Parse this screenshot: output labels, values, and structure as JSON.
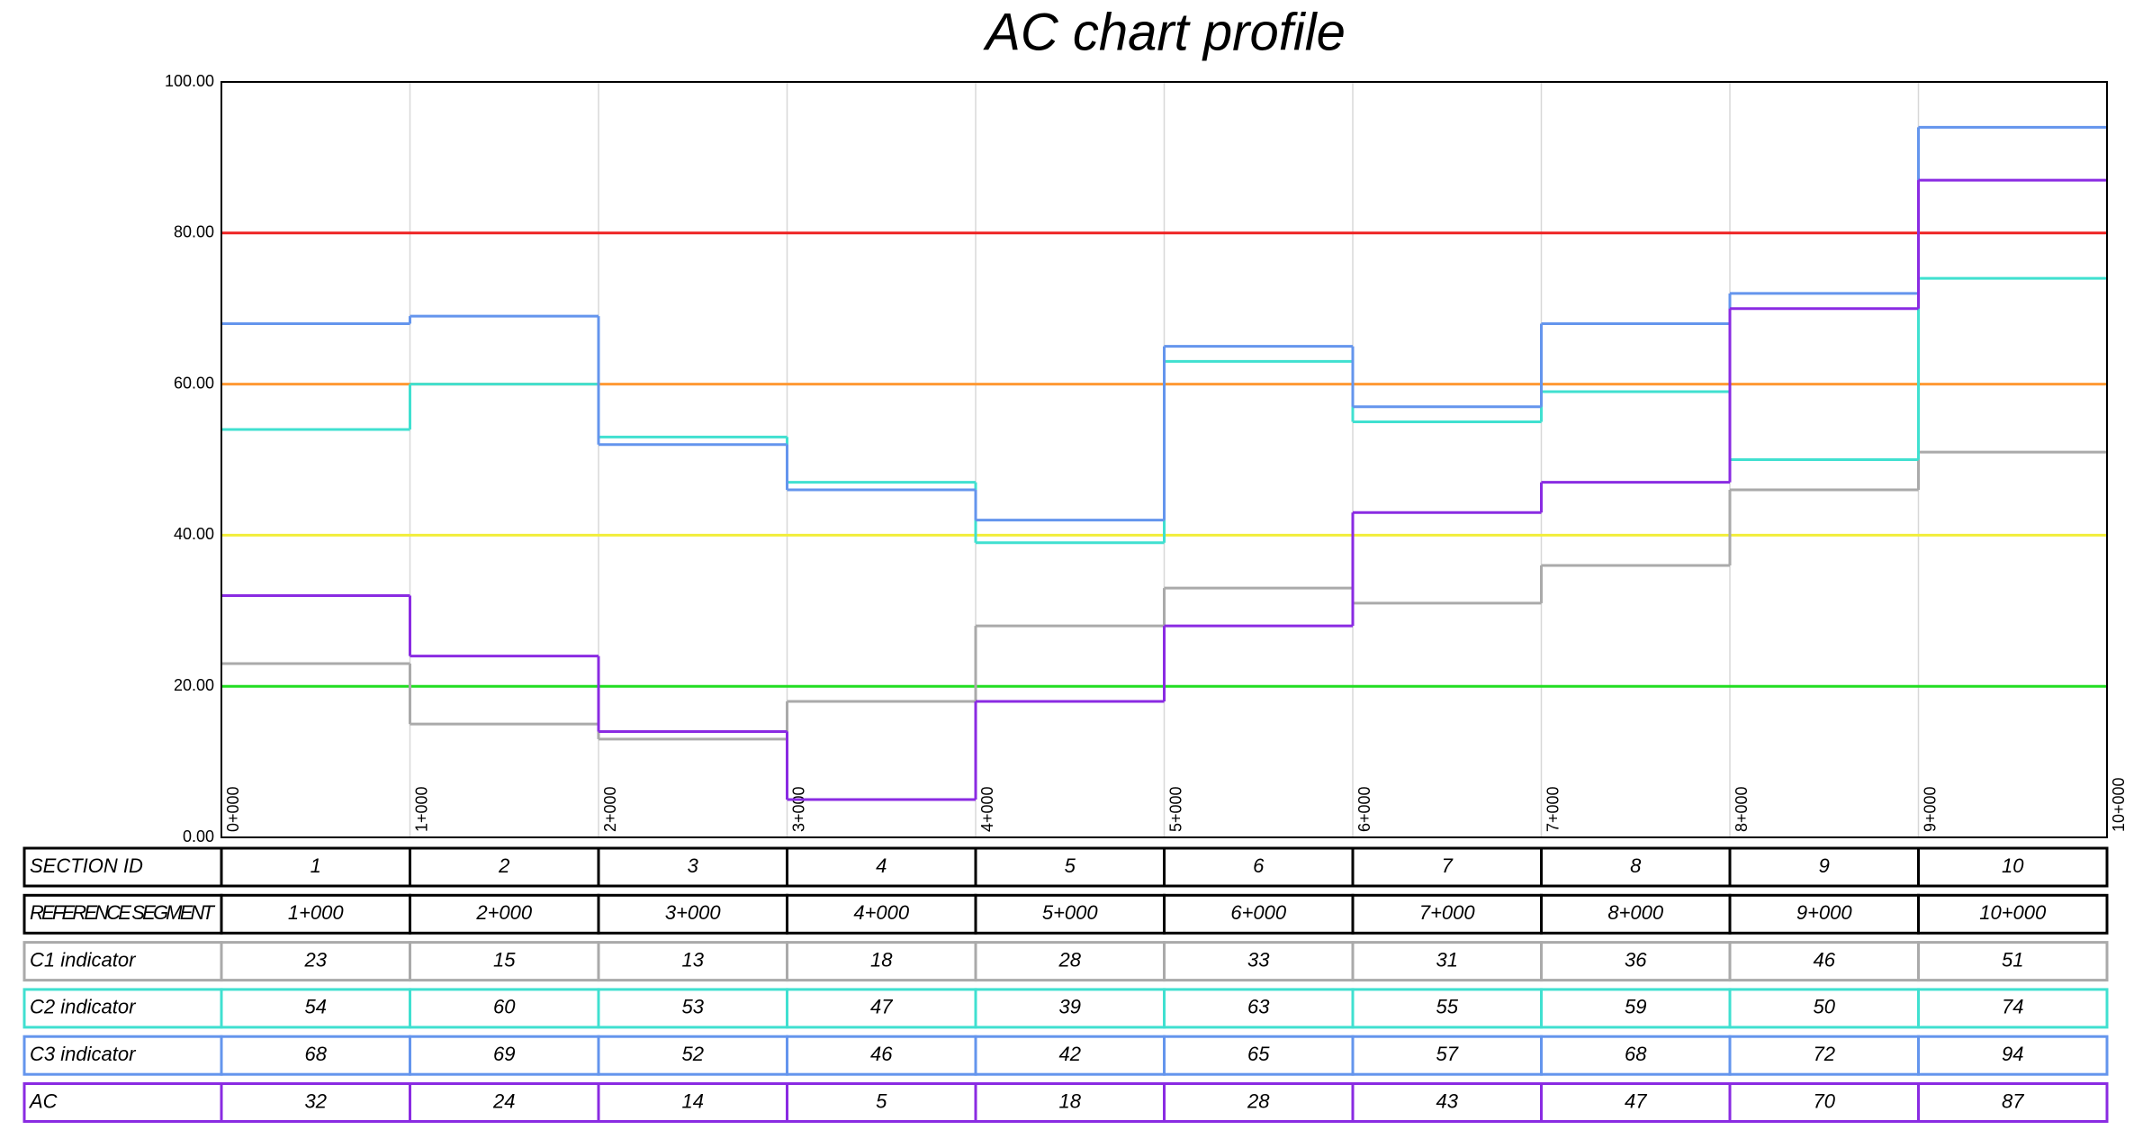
{
  "chart_data": {
    "type": "step",
    "title": "AC chart profile",
    "xlim": [
      0,
      10
    ],
    "ylim": [
      0,
      100
    ],
    "xticks": [
      {
        "value": 0,
        "label": "0+000"
      },
      {
        "value": 1,
        "label": "1+000"
      },
      {
        "value": 2,
        "label": "2+000"
      },
      {
        "value": 3,
        "label": "3+000"
      },
      {
        "value": 4,
        "label": "4+000"
      },
      {
        "value": 5,
        "label": "5+000"
      },
      {
        "value": 6,
        "label": "6+000"
      },
      {
        "value": 7,
        "label": "7+000"
      },
      {
        "value": 8,
        "label": "8+000"
      },
      {
        "value": 9,
        "label": "9+000"
      },
      {
        "value": 10,
        "label": "10+000"
      }
    ],
    "yticks": [
      {
        "value": 0,
        "label": "0.00"
      },
      {
        "value": 20,
        "label": "20.00"
      },
      {
        "value": 40,
        "label": "40.00"
      },
      {
        "value": 60,
        "label": "60.00"
      },
      {
        "value": 80,
        "label": "80.00"
      },
      {
        "value": 100,
        "label": "100.00"
      }
    ],
    "grid": true,
    "thresholds": [
      {
        "value": 20,
        "color": "#22dd22"
      },
      {
        "value": 40,
        "color": "#f2ee3a"
      },
      {
        "value": 60,
        "color": "#ff9933"
      },
      {
        "value": 80,
        "color": "#ee2222"
      }
    ],
    "section_label": "SECTION ID",
    "sections": [
      1,
      2,
      3,
      4,
      5,
      6,
      7,
      8,
      9,
      10
    ],
    "reference_label": "REFERENCE SEGMENT",
    "reference_segments": [
      "1+000",
      "2+000",
      "3+000",
      "4+000",
      "5+000",
      "6+000",
      "7+000",
      "8+000",
      "9+000",
      "10+000"
    ],
    "series": [
      {
        "name": "C1 indicator",
        "color": "#aaaaaa",
        "values": [
          23,
          15,
          13,
          18,
          28,
          33,
          31,
          36,
          46,
          51
        ]
      },
      {
        "name": "C2 indicator",
        "color": "#40e0d0",
        "values": [
          54,
          60,
          53,
          47,
          39,
          63,
          55,
          59,
          50,
          74
        ]
      },
      {
        "name": "C3 indicator",
        "color": "#6495ed",
        "values": [
          68,
          69,
          52,
          46,
          42,
          65,
          57,
          68,
          72,
          94
        ]
      },
      {
        "name": "AC",
        "color": "#8a2be2",
        "values": [
          32,
          24,
          14,
          5,
          18,
          28,
          43,
          47,
          70,
          87
        ]
      }
    ]
  }
}
